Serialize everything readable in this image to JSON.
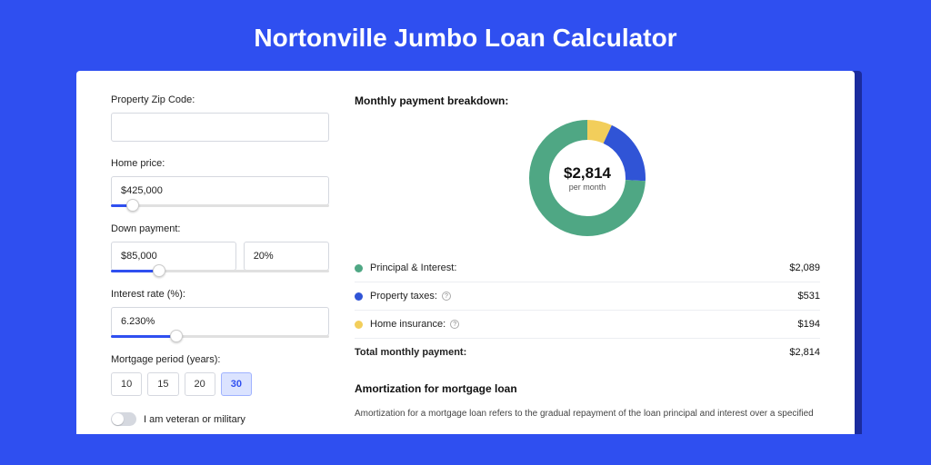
{
  "title": "Nortonville Jumbo Loan Calculator",
  "colors": {
    "page_bg": "#2f4ff0",
    "panel_shadow": "#1a2b9e",
    "panel_bg": "#ffffff",
    "input_border": "#d5d8df",
    "slider_fill": "#2f4ff0",
    "selected_bg": "#dbe3ff",
    "selected_border": "#9fb2ff"
  },
  "form": {
    "zip": {
      "label": "Property Zip Code:",
      "value": ""
    },
    "home_price": {
      "label": "Home price:",
      "value": "$425,000",
      "slider_pct": 10
    },
    "down_payment": {
      "label": "Down payment:",
      "amount": "$85,000",
      "percent": "20%",
      "slider_pct": 22
    },
    "interest_rate": {
      "label": "Interest rate (%):",
      "value": "6.230%",
      "slider_pct": 30
    },
    "mortgage_period": {
      "label": "Mortgage period (years):",
      "options": [
        "10",
        "15",
        "20",
        "30"
      ],
      "selected": "30"
    },
    "veteran": {
      "label": "I am veteran or military",
      "on": false
    }
  },
  "breakdown": {
    "title": "Monthly payment breakdown:",
    "center_amount": "$2,814",
    "center_sub": "per month",
    "donut": {
      "size": 128,
      "thickness": 22,
      "slices": [
        {
          "key": "principal_interest",
          "pct": 74.2,
          "color": "#4fa784"
        },
        {
          "key": "property_taxes",
          "pct": 18.9,
          "color": "#3054d6"
        },
        {
          "key": "home_insurance",
          "pct": 6.9,
          "color": "#f2ce5b"
        }
      ]
    },
    "items": [
      {
        "label": "Principal & Interest:",
        "value": "$2,089",
        "color": "#4fa784",
        "info": false
      },
      {
        "label": "Property taxes:",
        "value": "$531",
        "color": "#3054d6",
        "info": true
      },
      {
        "label": "Home insurance:",
        "value": "$194",
        "color": "#f2ce5b",
        "info": true
      }
    ],
    "total": {
      "label": "Total monthly payment:",
      "value": "$2,814"
    }
  },
  "amortization": {
    "title": "Amortization for mortgage loan",
    "text": "Amortization for a mortgage loan refers to the gradual repayment of the loan principal and interest over a specified"
  }
}
